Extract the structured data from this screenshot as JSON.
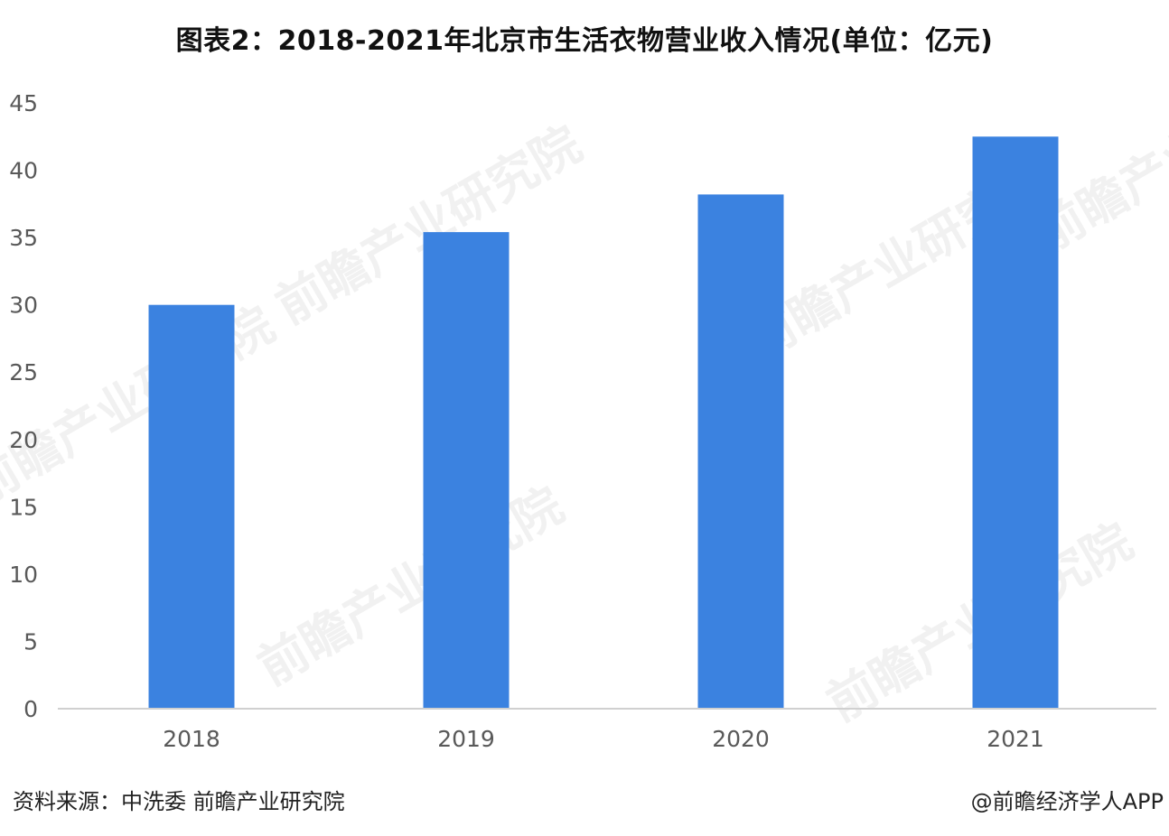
{
  "chart_data": {
    "type": "bar",
    "title": "图表2：2018-2021年北京市生活衣物营业收入情况(单位：亿元)",
    "categories": [
      "2018",
      "2019",
      "2020",
      "2021"
    ],
    "values": [
      30.0,
      35.4,
      38.2,
      42.5
    ],
    "ylim": [
      0,
      45
    ],
    "yticks": [
      0,
      5,
      10,
      15,
      20,
      25,
      30,
      35,
      40,
      45
    ],
    "ytick_labels": [
      "0",
      "5",
      "10",
      "15",
      "20",
      "25",
      "30",
      "35",
      "40",
      "45"
    ],
    "xlabel": "",
    "ylabel": "",
    "grid": false,
    "bar_color": "#3b82e0",
    "axis_color": "#d0d0d0"
  },
  "footer": {
    "source": "资料来源：中洗委 前瞻产业研究院",
    "brand": "@前瞻经济学人APP"
  },
  "watermark": {
    "text": "前瞻产业研究院"
  }
}
